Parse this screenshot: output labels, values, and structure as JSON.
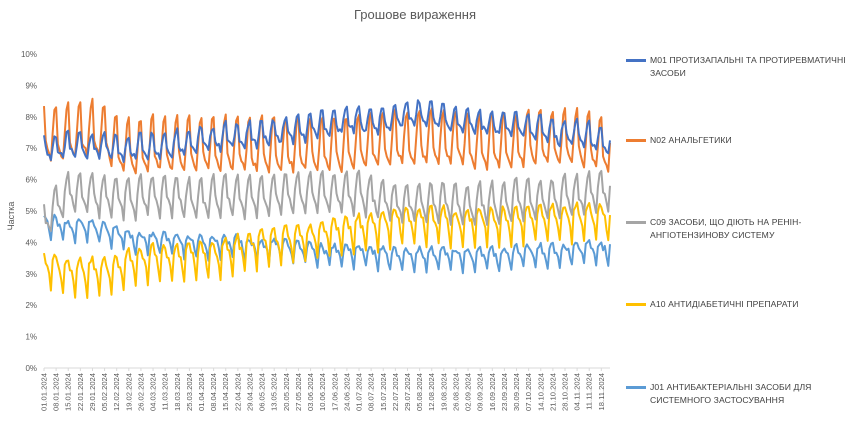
{
  "chart_data": {
    "type": "line",
    "title": "Грошове вираження",
    "xlabel": "",
    "ylabel": "Частка",
    "ylim": [
      0,
      0.1
    ],
    "y_ticks": [
      "0%",
      "1%",
      "2%",
      "3%",
      "4%",
      "5%",
      "6%",
      "7%",
      "8%",
      "9%",
      "10%"
    ],
    "grid": false,
    "legend_position": "right",
    "x_tick_labels": [
      "01.01.2024",
      "08.01.2024",
      "15.01.2024",
      "22.01.2024",
      "29.01.2024",
      "05.02.2024",
      "12.02.2024",
      "19.02.2024",
      "26.02.2024",
      "04.03.2024",
      "11.03.2024",
      "18.03.2024",
      "25.03.2024",
      "01.04.2024",
      "08.04.2024",
      "15.04.2024",
      "22.04.2024",
      "29.04.2024",
      "06.05.2024",
      "13.05.2024",
      "20.05.2024",
      "27.05.2024",
      "03.06.2024",
      "10.06.2024",
      "17.06.2024",
      "24.06.2024",
      "01.07.2024",
      "08.07.2024",
      "15.07.2024",
      "22.07.2024",
      "29.07.2024",
      "05.08.2024",
      "12.08.2024",
      "19.08.2024",
      "26.08.2024",
      "02.09.2024",
      "09.09.2024",
      "16.09.2024",
      "23.09.2024",
      "30.09.2024",
      "07.10.2024",
      "14.10.2024",
      "21.10.2024",
      "28.10.2024",
      "04.11.2024",
      "11.11.2024",
      "18.11.2024"
    ],
    "x_start": "01.01.2024",
    "x_end": "23.11.2024",
    "series": [
      {
        "name": "M01 ПРОТИЗАПАЛЬНІ ТА ПРОТИРЕВМАТИЧНІ ЗАСОБИ",
        "color": "#4472C4",
        "weekly_base": [
          0.069,
          0.068,
          0.069,
          0.069,
          0.069,
          0.069,
          0.068,
          0.068,
          0.069,
          0.069,
          0.069,
          0.07,
          0.07,
          0.071,
          0.071,
          0.072,
          0.072,
          0.072,
          0.073,
          0.073,
          0.074,
          0.074,
          0.075,
          0.076,
          0.076,
          0.077,
          0.077,
          0.077,
          0.077,
          0.078,
          0.079,
          0.079,
          0.079,
          0.078,
          0.077,
          0.077,
          0.076,
          0.076,
          0.076,
          0.076,
          0.075,
          0.075,
          0.073,
          0.073,
          0.073,
          0.072,
          0.07
        ],
        "weekend_peak": 0.006,
        "weekday_dip": 0.002
      },
      {
        "name": "N02 АНАЛЬГЕТИКИ",
        "color": "#ED7D31",
        "weekly_base": [
          0.07,
          0.069,
          0.07,
          0.07,
          0.071,
          0.07,
          0.066,
          0.065,
          0.065,
          0.066,
          0.066,
          0.066,
          0.066,
          0.066,
          0.066,
          0.066,
          0.066,
          0.065,
          0.066,
          0.066,
          0.066,
          0.066,
          0.066,
          0.066,
          0.066,
          0.066,
          0.067,
          0.067,
          0.067,
          0.068,
          0.068,
          0.068,
          0.068,
          0.068,
          0.068,
          0.067,
          0.067,
          0.067,
          0.067,
          0.067,
          0.068,
          0.068,
          0.068,
          0.068,
          0.068,
          0.067,
          0.066
        ],
        "weekend_peak": 0.014,
        "weekday_dip": 0.003
      },
      {
        "name": "C09 ЗАСОБИ, ЩО ДІЮТЬ НА РЕНІН-АНГІОТЕНЗИНОВУ СИСТЕМУ",
        "color": "#A5A5A5",
        "weekly_base": [
          0.045,
          0.05,
          0.054,
          0.054,
          0.054,
          0.053,
          0.053,
          0.052,
          0.053,
          0.053,
          0.053,
          0.053,
          0.052,
          0.052,
          0.053,
          0.053,
          0.053,
          0.053,
          0.053,
          0.054,
          0.054,
          0.054,
          0.054,
          0.054,
          0.054,
          0.054,
          0.054,
          0.053,
          0.052,
          0.051,
          0.051,
          0.051,
          0.051,
          0.051,
          0.051,
          0.05,
          0.051,
          0.051,
          0.051,
          0.052,
          0.052,
          0.052,
          0.052,
          0.053,
          0.053,
          0.054,
          0.055
        ],
        "weekend_peak": 0.008,
        "weekday_dip": 0.005
      },
      {
        "name": "A10 АНТИДІАБЕТИЧНІ ПРЕПАРАТИ",
        "color": "#FFC000",
        "weekly_base": [
          0.033,
          0.032,
          0.031,
          0.031,
          0.031,
          0.031,
          0.032,
          0.034,
          0.034,
          0.035,
          0.035,
          0.035,
          0.036,
          0.036,
          0.036,
          0.037,
          0.038,
          0.039,
          0.04,
          0.04,
          0.041,
          0.041,
          0.042,
          0.043,
          0.044,
          0.044,
          0.045,
          0.045,
          0.046,
          0.047,
          0.047,
          0.047,
          0.047,
          0.047,
          0.046,
          0.047,
          0.047,
          0.047,
          0.047,
          0.047,
          0.048,
          0.048,
          0.048,
          0.048,
          0.048,
          0.048,
          0.048
        ],
        "weekend_peak": 0.004,
        "weekday_dip": 0.008
      },
      {
        "name": "J01 АНТИБАКТЕРІАЛЬНІ ЗАСОБИ ДЛЯ СИСТЕМНОГО ЗАСТОСУВАННЯ",
        "color": "#5B9BD5",
        "weekly_base": [
          0.047,
          0.046,
          0.045,
          0.045,
          0.045,
          0.044,
          0.043,
          0.042,
          0.041,
          0.041,
          0.041,
          0.041,
          0.04,
          0.04,
          0.04,
          0.04,
          0.04,
          0.039,
          0.039,
          0.039,
          0.039,
          0.038,
          0.038,
          0.037,
          0.037,
          0.037,
          0.037,
          0.037,
          0.036,
          0.036,
          0.036,
          0.036,
          0.036,
          0.036,
          0.036,
          0.036,
          0.036,
          0.036,
          0.036,
          0.037,
          0.037,
          0.037,
          0.037,
          0.037,
          0.038,
          0.038,
          0.038
        ],
        "weekend_peak": 0.002,
        "weekday_dip": 0.005
      }
    ]
  },
  "legend": [
    {
      "label": "M01 ПРОТИЗАПАЛЬНІ ТА ПРОТИРЕВМАТИЧНІ ЗАСОБИ",
      "color": "#4472C4"
    },
    {
      "label": "N02 АНАЛЬГЕТИКИ",
      "color": "#ED7D31"
    },
    {
      "label": "C09 ЗАСОБИ, ЩО ДІЮТЬ НА РЕНІН-АНГІОТЕНЗИНОВУ СИСТЕМУ",
      "color": "#A5A5A5"
    },
    {
      "label": "A10 АНТИДІАБЕТИЧНІ ПРЕПАРАТИ",
      "color": "#FFC000"
    },
    {
      "label": "J01 АНТИБАКТЕРІАЛЬНІ ЗАСОБИ ДЛЯ СИСТЕМНОГО ЗАСТОСУВАННЯ",
      "color": "#5B9BD5"
    }
  ]
}
